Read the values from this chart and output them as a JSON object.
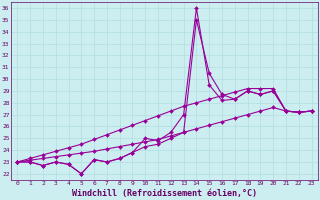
{
  "xlabel": "Windchill (Refroidissement éolien,°C)",
  "bg_color": "#cceef0",
  "line_color": "#990099",
  "grid_color": "#b0dde0",
  "axis_color": "#660066",
  "ylim": [
    21.5,
    36.5
  ],
  "xlim": [
    -0.5,
    23.5
  ],
  "yticks": [
    22,
    23,
    24,
    25,
    26,
    27,
    28,
    29,
    30,
    31,
    32,
    33,
    34,
    35,
    36
  ],
  "xticks": [
    0,
    1,
    2,
    3,
    4,
    5,
    6,
    7,
    8,
    9,
    10,
    11,
    12,
    13,
    14,
    15,
    16,
    17,
    18,
    19,
    20,
    21,
    22,
    23
  ],
  "series": [
    [
      23.0,
      23.0,
      22.7,
      23.0,
      22.8,
      22.0,
      23.2,
      23.0,
      23.3,
      23.8,
      25.0,
      24.8,
      25.5,
      27.0,
      36.0,
      29.5,
      28.2,
      28.3,
      29.0,
      28.7,
      29.0,
      27.3,
      27.2,
      27.3
    ],
    [
      23.0,
      23.0,
      22.7,
      23.0,
      22.8,
      22.0,
      23.2,
      23.0,
      23.3,
      23.8,
      24.3,
      24.5,
      25.0,
      25.5,
      35.0,
      30.5,
      28.7,
      28.3,
      29.0,
      28.7,
      29.0,
      27.3,
      27.2,
      27.3
    ],
    [
      23.0,
      23.15,
      23.3,
      23.45,
      23.6,
      23.75,
      23.9,
      24.1,
      24.3,
      24.5,
      24.7,
      24.9,
      25.2,
      25.5,
      25.8,
      26.1,
      26.4,
      26.7,
      27.0,
      27.3,
      27.6,
      27.3,
      27.2,
      27.3
    ],
    [
      23.0,
      23.3,
      23.6,
      23.9,
      24.2,
      24.5,
      24.9,
      25.3,
      25.7,
      26.1,
      26.5,
      26.9,
      27.3,
      27.7,
      28.0,
      28.3,
      28.6,
      28.9,
      29.2,
      29.2,
      29.2,
      27.3,
      27.2,
      27.3
    ]
  ],
  "marker": "D",
  "markersize": 2.0,
  "linewidth": 0.8,
  "tick_fontsize": 4.5,
  "xlabel_fontsize": 6.0
}
